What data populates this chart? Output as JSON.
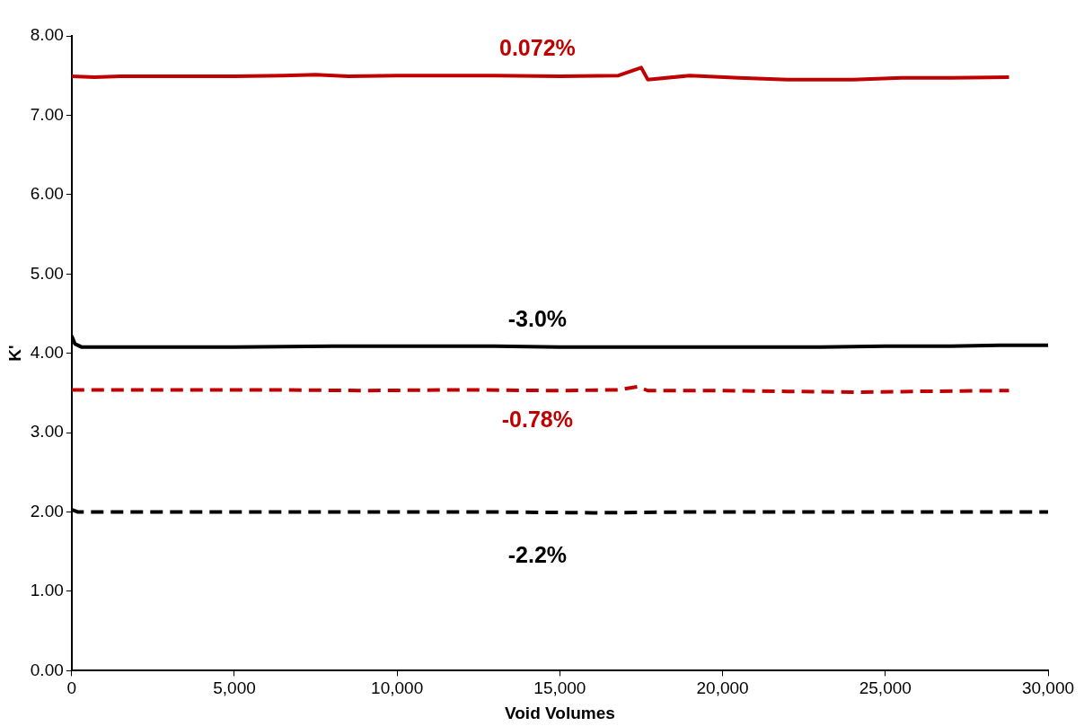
{
  "chart_data": {
    "type": "line",
    "xlabel": "Void Volumes",
    "ylabel": "K'",
    "xlim": [
      0,
      30000
    ],
    "xticks": [
      {
        "value": 0,
        "label": "0"
      },
      {
        "value": 5000,
        "label": "5,000"
      },
      {
        "value": 10000,
        "label": "10,000"
      },
      {
        "value": 15000,
        "label": "15,000"
      },
      {
        "value": 20000,
        "label": "20,000"
      },
      {
        "value": 25000,
        "label": "25,000"
      },
      {
        "value": 30000,
        "label": "30,000"
      }
    ],
    "ylim": [
      0,
      8
    ],
    "yticks": [
      {
        "value": 0,
        "label": "0.00"
      },
      {
        "value": 1,
        "label": "1.00"
      },
      {
        "value": 2,
        "label": "2.00"
      },
      {
        "value": 3,
        "label": "3.00"
      },
      {
        "value": 4,
        "label": "4.00"
      },
      {
        "value": 5,
        "label": "5.00"
      },
      {
        "value": 6,
        "label": "6.00"
      },
      {
        "value": 7,
        "label": "7.00"
      },
      {
        "value": 8,
        "label": "8.00"
      }
    ],
    "grid": false,
    "legend": false,
    "marker": "none",
    "series": [
      {
        "color": "#c00000",
        "line_style": "solid",
        "x": [
          0,
          700,
          1500,
          3000,
          5000,
          6500,
          7500,
          8500,
          10000,
          11500,
          13000,
          15000,
          16800,
          17500,
          17700,
          19000,
          20500,
          22000,
          24000,
          25500,
          27000,
          28800
        ],
        "values": [
          7.49,
          7.48,
          7.49,
          7.49,
          7.49,
          7.5,
          7.51,
          7.49,
          7.5,
          7.5,
          7.5,
          7.49,
          7.5,
          7.6,
          7.45,
          7.5,
          7.47,
          7.45,
          7.45,
          7.47,
          7.47,
          7.48
        ]
      },
      {
        "color": "#000000",
        "line_style": "solid",
        "x": [
          0,
          100,
          300,
          700,
          2000,
          5000,
          8000,
          10000,
          13000,
          15000,
          17000,
          19000,
          21000,
          23000,
          25000,
          27000,
          28500,
          30000
        ],
        "values": [
          4.22,
          4.12,
          4.08,
          4.08,
          4.08,
          4.08,
          4.09,
          4.09,
          4.09,
          4.08,
          4.08,
          4.08,
          4.08,
          4.08,
          4.09,
          4.09,
          4.1,
          4.1
        ]
      },
      {
        "color": "#c00000",
        "line_style": "dashed",
        "x": [
          0,
          3000,
          6000,
          9000,
          12000,
          15000,
          16800,
          17400,
          17700,
          20000,
          22000,
          24000,
          26000,
          28800
        ],
        "values": [
          3.54,
          3.54,
          3.54,
          3.53,
          3.54,
          3.53,
          3.54,
          3.58,
          3.53,
          3.53,
          3.52,
          3.51,
          3.52,
          3.53
        ]
      },
      {
        "color": "#000000",
        "line_style": "dashed",
        "x": [
          0,
          200,
          600,
          1500,
          4000,
          7000,
          10000,
          13000,
          16000,
          19000,
          22000,
          25000,
          28000,
          30000
        ],
        "values": [
          2.03,
          2.0,
          2.0,
          2.0,
          2.0,
          2.0,
          2.0,
          2.0,
          1.99,
          2.0,
          2.0,
          2.0,
          2.0,
          2.0
        ]
      }
    ],
    "annotations": [
      "0.072%",
      "-3.0%",
      "-0.78%",
      "-2.2%"
    ]
  }
}
